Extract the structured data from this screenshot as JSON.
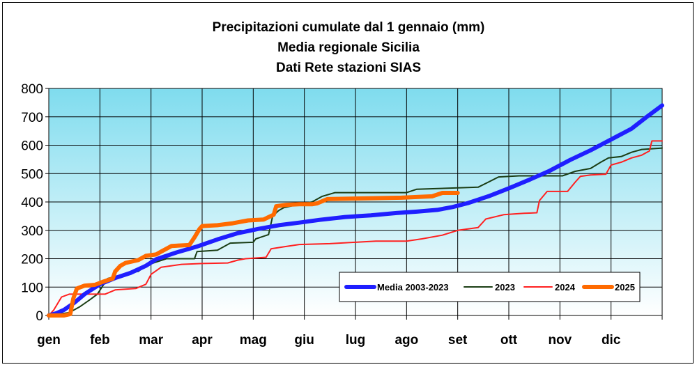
{
  "chart_data": {
    "type": "line",
    "title": [
      "Precipitazioni cumulate dal 1 gennaio (mm)",
      "Media regionale Sicilia",
      "Dati Rete stazioni SIAS"
    ],
    "xlabel": "",
    "ylabel": "",
    "categories": [
      "gen",
      "feb",
      "mar",
      "apr",
      "mag",
      "giu",
      "lug",
      "ago",
      "set",
      "ott",
      "nov",
      "dic"
    ],
    "xlim": [
      0,
      12
    ],
    "ylim": [
      0,
      800
    ],
    "yticks": [
      0,
      100,
      200,
      300,
      400,
      500,
      600,
      700,
      800
    ],
    "grid": true,
    "legend_position": "bottom-right",
    "series": [
      {
        "name": "Media 2003-2023",
        "color": "#1f1fff",
        "stroke": "thick",
        "points": [
          [
            0,
            0
          ],
          [
            0.15,
            8
          ],
          [
            0.3,
            20
          ],
          [
            0.5,
            45
          ],
          [
            0.7,
            75
          ],
          [
            1.0,
            110
          ],
          [
            1.3,
            132
          ],
          [
            1.6,
            150
          ],
          [
            1.9,
            175
          ],
          [
            2.1,
            198
          ],
          [
            2.5,
            222
          ],
          [
            2.9,
            243
          ],
          [
            3.3,
            268
          ],
          [
            3.7,
            290
          ],
          [
            4.1,
            305
          ],
          [
            4.5,
            318
          ],
          [
            4.9,
            327
          ],
          [
            5.3,
            337
          ],
          [
            5.8,
            347
          ],
          [
            6.3,
            353
          ],
          [
            6.8,
            361
          ],
          [
            7.2,
            366
          ],
          [
            7.6,
            372
          ],
          [
            7.9,
            382
          ],
          [
            8.2,
            396
          ],
          [
            8.6,
            420
          ],
          [
            9.0,
            448
          ],
          [
            9.4,
            478
          ],
          [
            9.8,
            510
          ],
          [
            10.2,
            548
          ],
          [
            10.6,
            582
          ],
          [
            11.0,
            620
          ],
          [
            11.4,
            658
          ],
          [
            11.7,
            700
          ],
          [
            12.0,
            740
          ]
        ]
      },
      {
        "name": "2023",
        "color": "#1a3d14",
        "stroke": "thin",
        "points": [
          [
            0,
            0
          ],
          [
            0.2,
            5
          ],
          [
            0.4,
            10
          ],
          [
            0.6,
            30
          ],
          [
            0.8,
            55
          ],
          [
            0.95,
            75
          ],
          [
            1.15,
            130
          ],
          [
            1.4,
            142
          ],
          [
            1.55,
            150
          ],
          [
            1.75,
            155
          ],
          [
            1.9,
            175
          ],
          [
            2.05,
            185
          ],
          [
            2.3,
            200
          ],
          [
            2.85,
            200
          ],
          [
            2.9,
            225
          ],
          [
            3.3,
            230
          ],
          [
            3.55,
            255
          ],
          [
            4.0,
            258
          ],
          [
            4.05,
            270
          ],
          [
            4.3,
            285
          ],
          [
            4.38,
            350
          ],
          [
            4.5,
            370
          ],
          [
            4.6,
            380
          ],
          [
            4.9,
            392
          ],
          [
            5.15,
            400
          ],
          [
            5.35,
            420
          ],
          [
            5.6,
            433
          ],
          [
            7.0,
            433
          ],
          [
            7.2,
            445
          ],
          [
            8.4,
            452
          ],
          [
            8.6,
            470
          ],
          [
            8.8,
            488
          ],
          [
            9.2,
            492
          ],
          [
            10.05,
            492
          ],
          [
            10.3,
            508
          ],
          [
            10.6,
            518
          ],
          [
            10.8,
            540
          ],
          [
            10.95,
            555
          ],
          [
            11.2,
            560
          ],
          [
            11.4,
            575
          ],
          [
            11.6,
            585
          ],
          [
            12.0,
            590
          ]
        ]
      },
      {
        "name": "2024",
        "color": "#ff2020",
        "stroke": "thin",
        "points": [
          [
            0,
            0
          ],
          [
            0.1,
            20
          ],
          [
            0.25,
            65
          ],
          [
            0.4,
            75
          ],
          [
            1.1,
            75
          ],
          [
            1.3,
            90
          ],
          [
            1.7,
            95
          ],
          [
            1.9,
            110
          ],
          [
            2.0,
            145
          ],
          [
            2.2,
            170
          ],
          [
            2.6,
            180
          ],
          [
            3.0,
            183
          ],
          [
            3.5,
            185
          ],
          [
            3.7,
            195
          ],
          [
            3.85,
            200
          ],
          [
            4.25,
            205
          ],
          [
            4.35,
            235
          ],
          [
            4.6,
            242
          ],
          [
            4.9,
            250
          ],
          [
            5.5,
            253
          ],
          [
            6.4,
            262
          ],
          [
            7.0,
            262
          ],
          [
            7.3,
            270
          ],
          [
            7.7,
            283
          ],
          [
            8.0,
            300
          ],
          [
            8.4,
            310
          ],
          [
            8.55,
            340
          ],
          [
            8.9,
            355
          ],
          [
            9.3,
            360
          ],
          [
            9.55,
            362
          ],
          [
            9.6,
            405
          ],
          [
            9.75,
            437
          ],
          [
            10.15,
            437
          ],
          [
            10.3,
            470
          ],
          [
            10.4,
            490
          ],
          [
            10.6,
            495
          ],
          [
            10.9,
            498
          ],
          [
            11.0,
            530
          ],
          [
            11.2,
            540
          ],
          [
            11.4,
            555
          ],
          [
            11.6,
            565
          ],
          [
            11.75,
            580
          ],
          [
            11.8,
            615
          ],
          [
            12.0,
            615
          ]
        ]
      },
      {
        "name": "2025",
        "color": "#ff6a00",
        "stroke": "thick",
        "points": [
          [
            0,
            0
          ],
          [
            0.3,
            0
          ],
          [
            0.42,
            5
          ],
          [
            0.48,
            60
          ],
          [
            0.55,
            95
          ],
          [
            0.7,
            105
          ],
          [
            0.9,
            108
          ],
          [
            1.05,
            118
          ],
          [
            1.25,
            130
          ],
          [
            1.3,
            155
          ],
          [
            1.4,
            175
          ],
          [
            1.5,
            185
          ],
          [
            1.75,
            195
          ],
          [
            1.9,
            210
          ],
          [
            2.1,
            215
          ],
          [
            2.2,
            225
          ],
          [
            2.3,
            235
          ],
          [
            2.4,
            245
          ],
          [
            2.75,
            248
          ],
          [
            2.85,
            275
          ],
          [
            2.95,
            305
          ],
          [
            3.0,
            315
          ],
          [
            3.3,
            318
          ],
          [
            3.6,
            325
          ],
          [
            3.9,
            335
          ],
          [
            4.2,
            338
          ],
          [
            4.4,
            355
          ],
          [
            4.45,
            385
          ],
          [
            4.65,
            390
          ],
          [
            4.9,
            392
          ],
          [
            5.15,
            392
          ],
          [
            5.25,
            395
          ],
          [
            5.45,
            410
          ],
          [
            6.0,
            412
          ],
          [
            6.9,
            415
          ],
          [
            7.5,
            420
          ],
          [
            7.7,
            432
          ],
          [
            8.0,
            432
          ]
        ]
      }
    ]
  }
}
